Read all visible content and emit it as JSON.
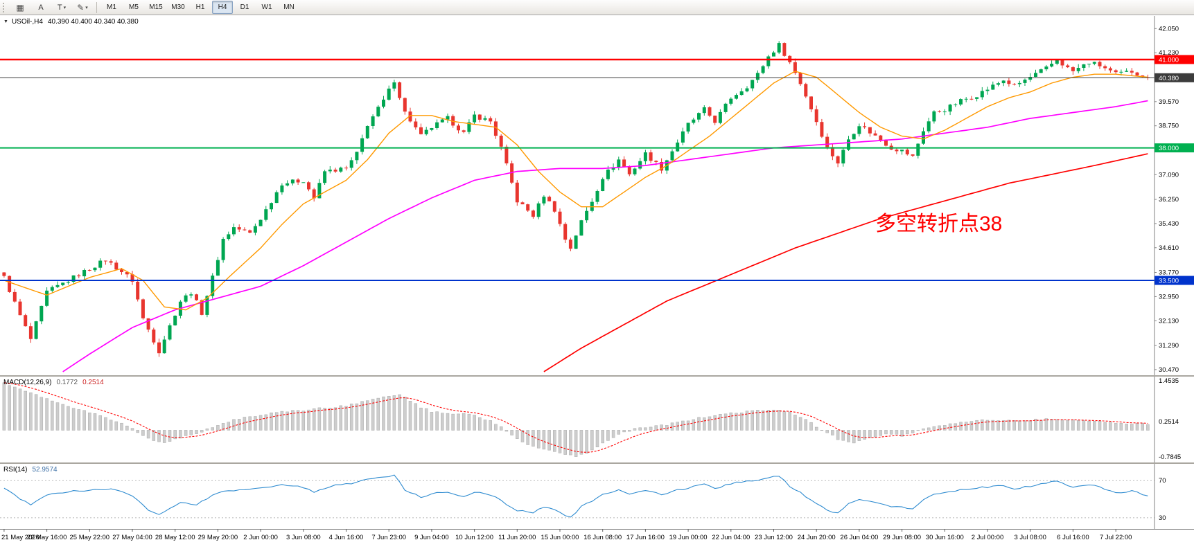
{
  "toolbar": {
    "letter_button": "A",
    "text_tool_button": "T",
    "timeframes": [
      "M1",
      "M5",
      "M15",
      "M30",
      "H1",
      "H4",
      "D1",
      "W1",
      "MN"
    ],
    "active_timeframe": "H4"
  },
  "icons": {
    "grid": "▦",
    "pencil": "✎",
    "dropdown": "▾",
    "triangle": "▼"
  },
  "colors": {
    "up": "#00a651",
    "down": "#e8352e",
    "ma_fast": "#ff9900",
    "ma_mid": "#ff00ff",
    "ma_slow": "#ff0000",
    "hline_red": "#ff0000",
    "hline_green": "#00b050",
    "hline_blue": "#0033cc",
    "bid": "#3c3c3c",
    "macd_hist": "#cdcdcd",
    "macd_signal": "#ff0000",
    "rsi_line": "#2e8bd0",
    "annotation": "#ff0000"
  },
  "chart_data": [
    {
      "type": "candlestick",
      "title": "USOil-,H4",
      "ohlc_text": "40.390 40.400 40.340 40.380",
      "open": "40.390",
      "high": "40.400",
      "low": "40.340",
      "close": "40.380",
      "candle_count": 215,
      "bars_per_tick": 8,
      "x_tick_labels": [
        "21 May 2020",
        "22 May 16:00",
        "25 May 22:00",
        "27 May 04:00",
        "28 May 12:00",
        "29 May 20:00",
        "2 Jun 00:00",
        "3 Jun 08:00",
        "4 Jun 16:00",
        "7 Jun 23:00",
        "9 Jun 04:00",
        "10 Jun 12:00",
        "11 Jun 20:00",
        "15 Jun 00:00",
        "16 Jun 08:00",
        "17 Jun 16:00",
        "19 Jun 00:00",
        "22 Jun 04:00",
        "23 Jun 12:00",
        "24 Jun 20:00",
        "26 Jun 04:00",
        "29 Jun 08:00",
        "30 Jun 16:00",
        "2 Jul 00:00",
        "3 Jul 08:00",
        "6 Jul 16:00",
        "7 Jul 22:00"
      ],
      "y_axis_labels": [
        "42.050",
        "41.230",
        "39.570",
        "38.750",
        "37.930",
        "37.090",
        "36.250",
        "35.430",
        "34.610",
        "33.770",
        "32.950",
        "32.130",
        "31.290",
        "30.470"
      ],
      "y_range": [
        30.28,
        42.48
      ],
      "price_path_anchors": [
        [
          0,
          33.6
        ],
        [
          3,
          32.3
        ],
        [
          5,
          31.5
        ],
        [
          8,
          33.1
        ],
        [
          12,
          33.5
        ],
        [
          16,
          33.9
        ],
        [
          19,
          34.2
        ],
        [
          22,
          33.8
        ],
        [
          24,
          33.5
        ],
        [
          26,
          32.2
        ],
        [
          29,
          31.1
        ],
        [
          33,
          32.8
        ],
        [
          35,
          33.1
        ],
        [
          37,
          32.4
        ],
        [
          39,
          33.6
        ],
        [
          41,
          34.9
        ],
        [
          43,
          35.3
        ],
        [
          46,
          35.1
        ],
        [
          48,
          35.6
        ],
        [
          52,
          36.8
        ],
        [
          56,
          36.9
        ],
        [
          58,
          36.3
        ],
        [
          60,
          37.2
        ],
        [
          64,
          37.3
        ],
        [
          66,
          37.8
        ],
        [
          68,
          38.8
        ],
        [
          71,
          39.6
        ],
        [
          73,
          40.3
        ],
        [
          75,
          39.2
        ],
        [
          78,
          38.4
        ],
        [
          80,
          38.7
        ],
        [
          83,
          39.0
        ],
        [
          86,
          38.5
        ],
        [
          88,
          39.1
        ],
        [
          91,
          38.9
        ],
        [
          93,
          38.0
        ],
        [
          95,
          36.8
        ],
        [
          96,
          36.2
        ],
        [
          99,
          35.7
        ],
        [
          101,
          36.4
        ],
        [
          103,
          35.9
        ],
        [
          105,
          34.9
        ],
        [
          106,
          34.6
        ],
        [
          108,
          35.5
        ],
        [
          110,
          36.2
        ],
        [
          112,
          37.0
        ],
        [
          115,
          37.6
        ],
        [
          117,
          37.1
        ],
        [
          120,
          37.8
        ],
        [
          123,
          37.3
        ],
        [
          126,
          38.2
        ],
        [
          128,
          38.8
        ],
        [
          131,
          39.3
        ],
        [
          133,
          38.9
        ],
        [
          136,
          39.7
        ],
        [
          139,
          40.1
        ],
        [
          141,
          40.5
        ],
        [
          143,
          41.1
        ],
        [
          145,
          41.5
        ],
        [
          147,
          40.9
        ],
        [
          149,
          40.2
        ],
        [
          152,
          38.9
        ],
        [
          154,
          38.0
        ],
        [
          156,
          37.5
        ],
        [
          158,
          38.3
        ],
        [
          160,
          38.8
        ],
        [
          163,
          38.4
        ],
        [
          166,
          38.0
        ],
        [
          168,
          37.9
        ],
        [
          170,
          37.7
        ],
        [
          172,
          38.6
        ],
        [
          174,
          39.2
        ],
        [
          176,
          39.3
        ],
        [
          179,
          39.6
        ],
        [
          182,
          39.8
        ],
        [
          184,
          40.0
        ],
        [
          187,
          40.3
        ],
        [
          189,
          40.1
        ],
        [
          192,
          40.4
        ],
        [
          195,
          40.7
        ],
        [
          197,
          41.0
        ],
        [
          199,
          40.7
        ],
        [
          200,
          40.6
        ],
        [
          203,
          40.9
        ],
        [
          205,
          40.8
        ],
        [
          208,
          40.5
        ],
        [
          211,
          40.6
        ],
        [
          214,
          40.38
        ]
      ],
      "ma_fast_anchors": [
        [
          0,
          33.5
        ],
        [
          8,
          33.0
        ],
        [
          16,
          33.6
        ],
        [
          22,
          33.9
        ],
        [
          26,
          33.5
        ],
        [
          30,
          32.6
        ],
        [
          34,
          32.5
        ],
        [
          38,
          32.9
        ],
        [
          42,
          33.6
        ],
        [
          48,
          34.6
        ],
        [
          52,
          35.4
        ],
        [
          56,
          36.1
        ],
        [
          60,
          36.5
        ],
        [
          64,
          36.9
        ],
        [
          68,
          37.6
        ],
        [
          72,
          38.5
        ],
        [
          76,
          39.1
        ],
        [
          80,
          39.1
        ],
        [
          84,
          38.9
        ],
        [
          88,
          38.8
        ],
        [
          92,
          38.7
        ],
        [
          96,
          38.1
        ],
        [
          100,
          37.2
        ],
        [
          104,
          36.5
        ],
        [
          108,
          36.0
        ],
        [
          112,
          36.0
        ],
        [
          116,
          36.5
        ],
        [
          120,
          37.0
        ],
        [
          124,
          37.4
        ],
        [
          128,
          37.9
        ],
        [
          132,
          38.4
        ],
        [
          136,
          39.0
        ],
        [
          140,
          39.6
        ],
        [
          144,
          40.2
        ],
        [
          148,
          40.6
        ],
        [
          152,
          40.4
        ],
        [
          156,
          39.8
        ],
        [
          160,
          39.2
        ],
        [
          164,
          38.7
        ],
        [
          168,
          38.4
        ],
        [
          172,
          38.3
        ],
        [
          176,
          38.6
        ],
        [
          180,
          39.0
        ],
        [
          184,
          39.4
        ],
        [
          188,
          39.7
        ],
        [
          192,
          39.9
        ],
        [
          196,
          40.2
        ],
        [
          200,
          40.4
        ],
        [
          204,
          40.5
        ],
        [
          208,
          40.5
        ],
        [
          214,
          40.4
        ]
      ],
      "ma_mid_anchors": [
        [
          11,
          30.4
        ],
        [
          16,
          31.0
        ],
        [
          24,
          31.9
        ],
        [
          32,
          32.5
        ],
        [
          40,
          32.9
        ],
        [
          48,
          33.3
        ],
        [
          56,
          34.0
        ],
        [
          64,
          34.8
        ],
        [
          72,
          35.6
        ],
        [
          80,
          36.3
        ],
        [
          88,
          36.9
        ],
        [
          96,
          37.2
        ],
        [
          104,
          37.3
        ],
        [
          112,
          37.3
        ],
        [
          120,
          37.4
        ],
        [
          128,
          37.6
        ],
        [
          136,
          37.8
        ],
        [
          144,
          38.0
        ],
        [
          152,
          38.1
        ],
        [
          160,
          38.2
        ],
        [
          168,
          38.3
        ],
        [
          176,
          38.5
        ],
        [
          184,
          38.7
        ],
        [
          192,
          39.0
        ],
        [
          200,
          39.2
        ],
        [
          208,
          39.4
        ],
        [
          214,
          39.6
        ]
      ],
      "ma_slow_anchors": [
        [
          101,
          30.4
        ],
        [
          108,
          31.2
        ],
        [
          116,
          32.0
        ],
        [
          124,
          32.8
        ],
        [
          132,
          33.4
        ],
        [
          140,
          34.0
        ],
        [
          148,
          34.6
        ],
        [
          156,
          35.1
        ],
        [
          164,
          35.6
        ],
        [
          172,
          36.0
        ],
        [
          180,
          36.4
        ],
        [
          188,
          36.8
        ],
        [
          196,
          37.1
        ],
        [
          204,
          37.4
        ],
        [
          214,
          37.8
        ]
      ],
      "hlines": [
        {
          "price": 41.0,
          "label": "41.000",
          "color_key": "hline_red",
          "width": 2.5
        },
        {
          "price": 38.0,
          "label": "38.000",
          "color_key": "hline_green",
          "width": 2
        },
        {
          "price": 33.5,
          "label": "33.500",
          "color_key": "hline_blue",
          "width": 2
        }
      ],
      "bid": {
        "price": 40.38,
        "label": "40.380"
      },
      "annotation": {
        "text": "多空转折点38",
        "x_index": 163,
        "price": 35.5
      }
    },
    {
      "type": "macd",
      "label": "MACD(12,26,9)",
      "values": [
        "0.1772",
        "0.2514"
      ],
      "axis_labels": [
        {
          "text": "1.4535",
          "value": 1.4535
        },
        {
          "text": "0.2514",
          "value": 0.2514
        },
        {
          "text": "-0.7845",
          "value": -0.7845
        }
      ],
      "range": [
        -0.95,
        1.58
      ],
      "anchors": [
        [
          0,
          1.4
        ],
        [
          4,
          1.15
        ],
        [
          8,
          0.92
        ],
        [
          12,
          0.72
        ],
        [
          16,
          0.52
        ],
        [
          20,
          0.32
        ],
        [
          24,
          0.05
        ],
        [
          27,
          -0.25
        ],
        [
          30,
          -0.38
        ],
        [
          33,
          -0.22
        ],
        [
          36,
          -0.1
        ],
        [
          40,
          0.15
        ],
        [
          44,
          0.35
        ],
        [
          48,
          0.45
        ],
        [
          52,
          0.55
        ],
        [
          56,
          0.58
        ],
        [
          60,
          0.66
        ],
        [
          64,
          0.72
        ],
        [
          68,
          0.88
        ],
        [
          72,
          1.02
        ],
        [
          74,
          1.05
        ],
        [
          76,
          0.88
        ],
        [
          78,
          0.68
        ],
        [
          80,
          0.55
        ],
        [
          84,
          0.5
        ],
        [
          88,
          0.46
        ],
        [
          92,
          0.2
        ],
        [
          95,
          -0.15
        ],
        [
          98,
          -0.42
        ],
        [
          101,
          -0.55
        ],
        [
          104,
          -0.66
        ],
        [
          107,
          -0.78
        ],
        [
          110,
          -0.6
        ],
        [
          112,
          -0.38
        ],
        [
          115,
          -0.12
        ],
        [
          118,
          0.04
        ],
        [
          121,
          0.1
        ],
        [
          124,
          0.16
        ],
        [
          128,
          0.3
        ],
        [
          132,
          0.42
        ],
        [
          136,
          0.5
        ],
        [
          140,
          0.56
        ],
        [
          144,
          0.62
        ],
        [
          147,
          0.52
        ],
        [
          150,
          0.3
        ],
        [
          153,
          0.02
        ],
        [
          156,
          -0.26
        ],
        [
          159,
          -0.36
        ],
        [
          162,
          -0.22
        ],
        [
          165,
          -0.1
        ],
        [
          168,
          -0.16
        ],
        [
          171,
          -0.02
        ],
        [
          174,
          0.1
        ],
        [
          177,
          0.2
        ],
        [
          180,
          0.26
        ],
        [
          184,
          0.3
        ],
        [
          188,
          0.31
        ],
        [
          192,
          0.3
        ],
        [
          196,
          0.34
        ],
        [
          200,
          0.3
        ],
        [
          204,
          0.26
        ],
        [
          208,
          0.22
        ],
        [
          211,
          0.2
        ],
        [
          214,
          0.18
        ]
      ]
    },
    {
      "type": "rsi",
      "label": "RSI(14)",
      "value": "52.9574",
      "levels": [
        {
          "value": 70,
          "label": "70"
        },
        {
          "value": 30,
          "label": "30"
        }
      ],
      "range": [
        18,
        88
      ],
      "anchors": [
        [
          0,
          62
        ],
        [
          3,
          50
        ],
        [
          5,
          44
        ],
        [
          8,
          55
        ],
        [
          12,
          58
        ],
        [
          16,
          60
        ],
        [
          20,
          61
        ],
        [
          24,
          54
        ],
        [
          27,
          38
        ],
        [
          29,
          34
        ],
        [
          33,
          47
        ],
        [
          36,
          44
        ],
        [
          40,
          57
        ],
        [
          44,
          60
        ],
        [
          48,
          62
        ],
        [
          52,
          66
        ],
        [
          56,
          63
        ],
        [
          58,
          58
        ],
        [
          62,
          65
        ],
        [
          64,
          66
        ],
        [
          68,
          71
        ],
        [
          71,
          74
        ],
        [
          73,
          76
        ],
        [
          75,
          60
        ],
        [
          78,
          52
        ],
        [
          80,
          56
        ],
        [
          83,
          58
        ],
        [
          86,
          53
        ],
        [
          88,
          58
        ],
        [
          91,
          55
        ],
        [
          93,
          48
        ],
        [
          95,
          41
        ],
        [
          96,
          38
        ],
        [
          99,
          35
        ],
        [
          101,
          42
        ],
        [
          104,
          36
        ],
        [
          106,
          30
        ],
        [
          108,
          42
        ],
        [
          110,
          48
        ],
        [
          112,
          55
        ],
        [
          115,
          60
        ],
        [
          117,
          55
        ],
        [
          120,
          60
        ],
        [
          123,
          55
        ],
        [
          126,
          60
        ],
        [
          128,
          62
        ],
        [
          131,
          66
        ],
        [
          133,
          61
        ],
        [
          136,
          67
        ],
        [
          139,
          69
        ],
        [
          141,
          71
        ],
        [
          143,
          73
        ],
        [
          145,
          75
        ],
        [
          147,
          64
        ],
        [
          149,
          57
        ],
        [
          152,
          45
        ],
        [
          154,
          38
        ],
        [
          156,
          35
        ],
        [
          158,
          45
        ],
        [
          160,
          50
        ],
        [
          163,
          46
        ],
        [
          166,
          42
        ],
        [
          168,
          41
        ],
        [
          170,
          39
        ],
        [
          172,
          50
        ],
        [
          174,
          56
        ],
        [
          176,
          57
        ],
        [
          179,
          60
        ],
        [
          182,
          62
        ],
        [
          184,
          63
        ],
        [
          187,
          65
        ],
        [
          189,
          61
        ],
        [
          192,
          64
        ],
        [
          195,
          67
        ],
        [
          197,
          70
        ],
        [
          199,
          64
        ],
        [
          200,
          62
        ],
        [
          203,
          66
        ],
        [
          205,
          63
        ],
        [
          208,
          57
        ],
        [
          211,
          59
        ],
        [
          214,
          52.96
        ]
      ]
    }
  ]
}
